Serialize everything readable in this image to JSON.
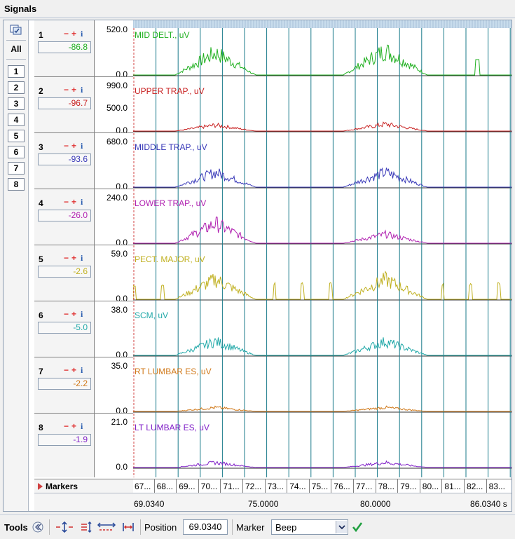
{
  "window": {
    "title": "Signals"
  },
  "leftbar": {
    "all_label": "All",
    "channel_buttons": [
      "1",
      "2",
      "3",
      "4",
      "5",
      "6",
      "7",
      "8"
    ]
  },
  "channels": [
    {
      "num": "1",
      "value": "-86.8",
      "color": "#20b020",
      "label": "MID DELT., uV",
      "scale": [
        "520.0",
        "0.0"
      ]
    },
    {
      "num": "2",
      "value": "-96.7",
      "color": "#c82020",
      "label": "UPPER TRAP., uV",
      "scale": [
        "990.0",
        "500.0",
        "0.0"
      ]
    },
    {
      "num": "3",
      "value": "-93.6",
      "color": "#3838b8",
      "label": "MIDDLE TRAP., uV",
      "scale": [
        "680.0",
        "0.0"
      ]
    },
    {
      "num": "4",
      "value": "-26.0",
      "color": "#b020b0",
      "label": "LOWER TRAP., uV",
      "scale": [
        "240.0",
        "0.0"
      ]
    },
    {
      "num": "5",
      "value": "-2.6",
      "color": "#c0b020",
      "label": "PECT. MAJOR, uV",
      "scale": [
        "59.0",
        "0.0"
      ]
    },
    {
      "num": "6",
      "value": "-5.0",
      "color": "#20a8a8",
      "label": "SCM, uV",
      "scale": [
        "38.0",
        "0.0"
      ]
    },
    {
      "num": "7",
      "value": "-2.2",
      "color": "#d07818",
      "label": "RT LUMBAR ES, uV",
      "scale": [
        "35.0",
        "0.0"
      ]
    },
    {
      "num": "8",
      "value": "-1.9",
      "color": "#8020c8",
      "label": "LT LUMBAR ES, uV",
      "scale": [
        "21.0",
        "0.0"
      ]
    }
  ],
  "channel_buttons": {
    "minus": "−",
    "plus": "+",
    "info": "i"
  },
  "markers": {
    "label": "Markers"
  },
  "time_cells": [
    "67...",
    "68...",
    "69...",
    "70...",
    "71...",
    "72...",
    "73...",
    "74...",
    "75...",
    "76...",
    "77...",
    "78...",
    "79...",
    "80...",
    "81...",
    "82...",
    "83..."
  ],
  "axis": {
    "start": "69.0340",
    "mid1": "75.0000",
    "mid2": "80.0000",
    "end": "86.0340 s"
  },
  "toolbar": {
    "tools_label": "Tools",
    "position_label": "Position",
    "position_value": "69.0340",
    "marker_label": "Marker",
    "marker_value": "Beep"
  },
  "colors": {
    "grid": "#1a7a8a",
    "accent": "#2a5db0"
  }
}
